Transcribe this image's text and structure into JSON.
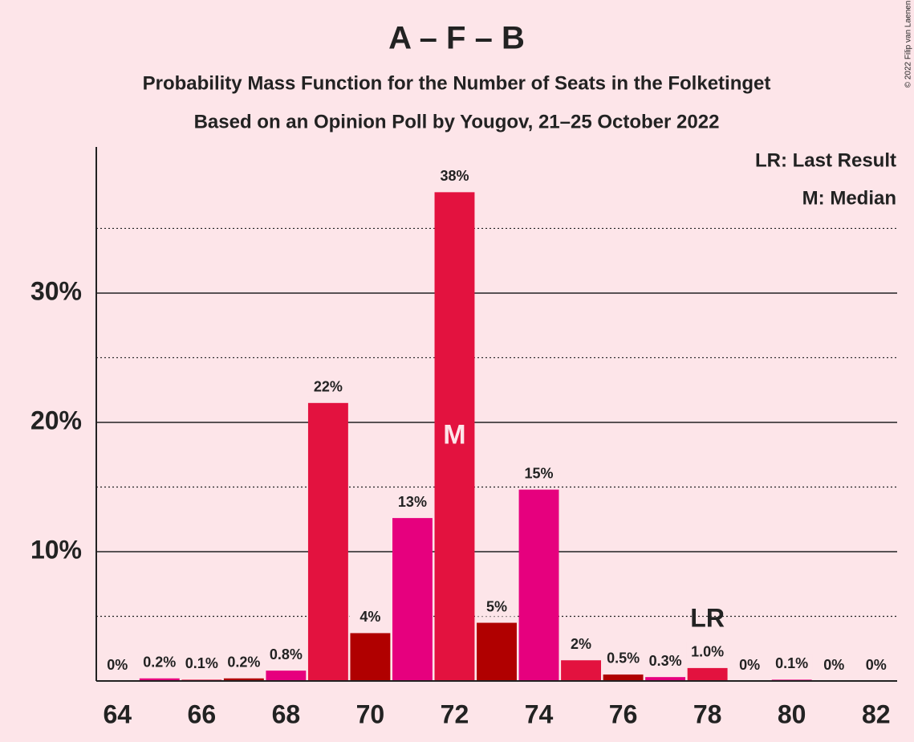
{
  "chart_data": {
    "type": "bar",
    "title": "A – F – B",
    "subtitle": "Probability Mass Function for the Number of Seats in the Folketinget",
    "subtitle2": "Based on an Opinion Poll by Yougov, 21–25 October 2022",
    "copyright": "© 2022 Filip van Laenen",
    "legend": [
      "LR: Last Result",
      "M: Median"
    ],
    "x": [
      64,
      65,
      66,
      67,
      68,
      69,
      70,
      71,
      72,
      73,
      74,
      75,
      76,
      77,
      78,
      79,
      80,
      81,
      82
    ],
    "values": [
      0,
      0.2,
      0.1,
      0.2,
      0.8,
      21.5,
      3.7,
      12.6,
      37.8,
      4.5,
      14.8,
      1.6,
      0.5,
      0.3,
      1.0,
      0,
      0.1,
      0,
      0
    ],
    "value_labels": [
      "0%",
      "0.2%",
      "0.1%",
      "0.2%",
      "0.8%",
      "22%",
      "4%",
      "13%",
      "38%",
      "5%",
      "15%",
      "2%",
      "0.5%",
      "0.3%",
      "1.0%",
      "0%",
      "0.1%",
      "0%",
      "0%"
    ],
    "colors": [
      "#b00000",
      "#e6007e",
      "#e3123f",
      "#b00000",
      "#e6007e",
      "#e3123f",
      "#b00000",
      "#e6007e",
      "#e3123f",
      "#b00000",
      "#e6007e",
      "#e3123f",
      "#b00000",
      "#e6007e",
      "#e3123f",
      "#b00000",
      "#e6007e",
      "#e3123f",
      "#b00000"
    ],
    "xlim": [
      63.5,
      82.5
    ],
    "xticks": [
      64,
      66,
      68,
      70,
      72,
      74,
      76,
      78,
      80,
      82
    ],
    "ylim": [
      0,
      41.3
    ],
    "yticks": [
      {
        "value": 10,
        "label": "10%"
      },
      {
        "value": 20,
        "label": "20%"
      },
      {
        "value": 30,
        "label": "30%"
      }
    ],
    "minor_grid": [
      5,
      15,
      25,
      35
    ],
    "grid": true,
    "median": {
      "label": "M",
      "x": 72
    },
    "last_result": {
      "label": "LR",
      "x": 78
    }
  }
}
